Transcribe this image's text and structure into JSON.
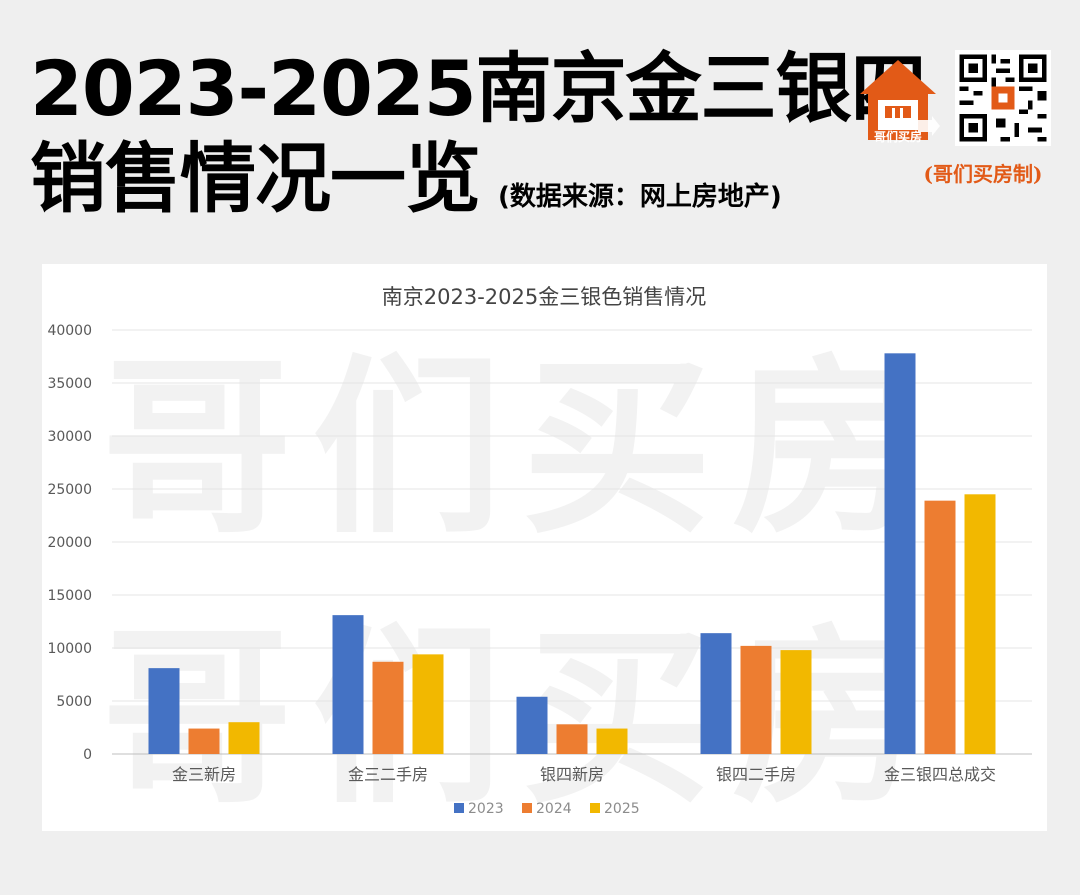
{
  "header": {
    "title_line1": "2023-2025南京金三银四",
    "title_line2": "销售情况一览",
    "source": "(数据来源：网上房地产)",
    "brand_note": "(哥们买房制)",
    "logo_text": "哥们买房"
  },
  "watermark": "哥们买房",
  "colors": {
    "2023": "#4472c4",
    "2024": "#ed7d31",
    "2025": "#f2b800",
    "brand": "#e25a17"
  },
  "chart_data": {
    "type": "bar",
    "title": "南京2023-2025金三银色销售情况",
    "categories": [
      "金三新房",
      "金三二手房",
      "银四新房",
      "银四二手房",
      "金三银四总成交"
    ],
    "series": [
      {
        "name": "2023",
        "values": [
          8100,
          13100,
          5400,
          11400,
          37800
        ]
      },
      {
        "name": "2024",
        "values": [
          2400,
          8700,
          2800,
          10200,
          23900
        ]
      },
      {
        "name": "2025",
        "values": [
          3000,
          9400,
          2400,
          9800,
          24500
        ]
      }
    ],
    "ylim": [
      0,
      40000
    ],
    "yticks": [
      0,
      5000,
      10000,
      15000,
      20000,
      25000,
      30000,
      35000,
      40000
    ],
    "grid": true,
    "legend_position": "bottom"
  }
}
